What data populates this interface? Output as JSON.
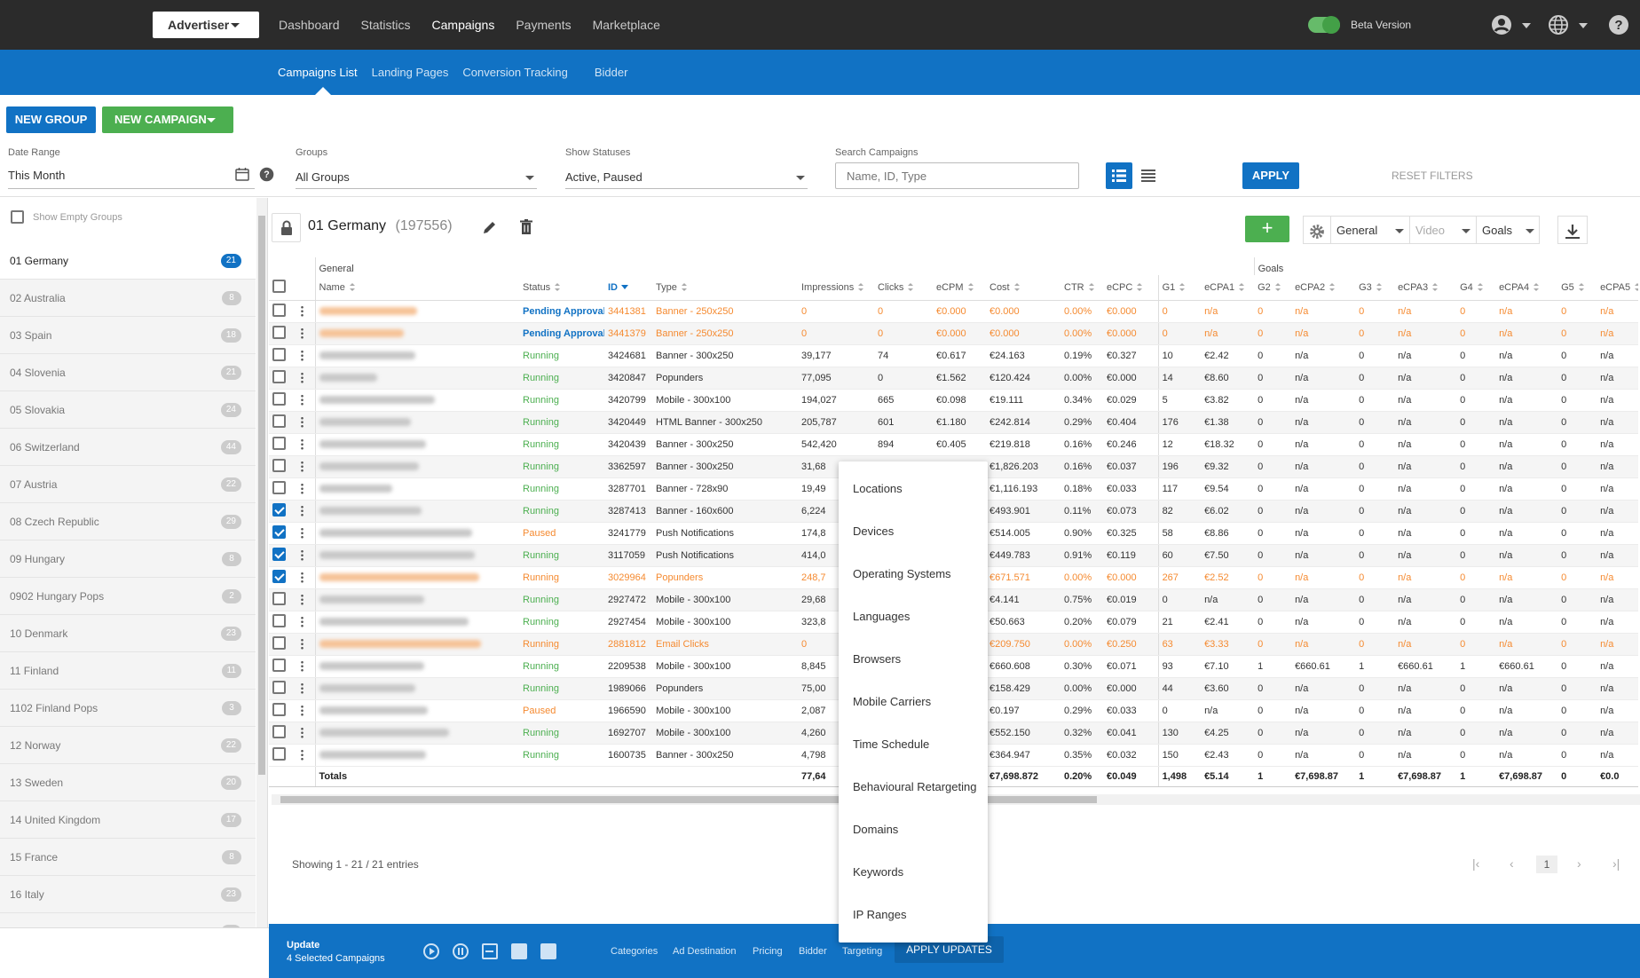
{
  "topbar": {
    "account_label": "Advertiser",
    "nav": [
      "Dashboard",
      "Statistics",
      "Campaigns",
      "Payments",
      "Marketplace"
    ],
    "active_nav": "Campaigns",
    "beta_label": "Beta Version"
  },
  "subnav": {
    "items": [
      "Campaigns List",
      "Landing Pages",
      "Conversion Tracking",
      "Bidder"
    ],
    "active": "Campaigns List"
  },
  "actions": {
    "new_group": "NEW GROUP",
    "new_campaign": "NEW CAMPAIGN"
  },
  "filters": {
    "date_range_label": "Date Range",
    "date_range_value": "This Month",
    "groups_label": "Groups",
    "groups_value": "All Groups",
    "statuses_label": "Show Statuses",
    "statuses_value": "Active, Paused",
    "search_label": "Search Campaigns",
    "search_placeholder": "Name, ID, Type",
    "apply": "APPLY",
    "reset": "RESET FILTERS"
  },
  "sidebar": {
    "show_empty": "Show Empty Groups",
    "groups": [
      {
        "name": "01 Germany",
        "count": "21",
        "active": true
      },
      {
        "name": "02 Australia",
        "count": "8"
      },
      {
        "name": "03 Spain",
        "count": "18"
      },
      {
        "name": "04 Slovenia",
        "count": "21"
      },
      {
        "name": "05 Slovakia",
        "count": "24"
      },
      {
        "name": "06 Switzerland",
        "count": "44"
      },
      {
        "name": "07 Austria",
        "count": "22"
      },
      {
        "name": "08 Czech Republic",
        "count": "29"
      },
      {
        "name": "09 Hungary",
        "count": "8"
      },
      {
        "name": "0902 Hungary Pops",
        "count": "2"
      },
      {
        "name": "10 Denmark",
        "count": "23"
      },
      {
        "name": "11 Finland",
        "count": "11"
      },
      {
        "name": "1102 Finland Pops",
        "count": "3"
      },
      {
        "name": "12 Norway",
        "count": "22"
      },
      {
        "name": "13 Sweden",
        "count": "20"
      },
      {
        "name": "14 United Kingdom",
        "count": "17"
      },
      {
        "name": "15 France",
        "count": "8"
      },
      {
        "name": "16 Italy",
        "count": "23"
      },
      {
        "name": "17 New Zealand",
        "count": "18"
      }
    ]
  },
  "group_header": {
    "title": "01 Germany",
    "id": "(197556)",
    "select_general": "General",
    "select_video": "Video",
    "select_goals": "Goals"
  },
  "table": {
    "group_headers": {
      "general": "General",
      "goals": "Goals"
    },
    "columns": [
      "Name",
      "Status",
      "ID",
      "Type",
      "Impressions",
      "Clicks",
      "eCPM",
      "Cost",
      "CTR",
      "eCPC",
      "G1",
      "eCPA1",
      "G2",
      "eCPA2",
      "G3",
      "eCPA3",
      "G4",
      "eCPA4",
      "G5",
      "eCPA5"
    ],
    "rows": [
      {
        "checked": false,
        "orange": true,
        "nw": 110,
        "status": "Pending Approval",
        "st": "pending",
        "id": "3441381",
        "type": "Banner - 250x250",
        "imp": "0",
        "clicks": "0",
        "ecpm": "€0.000",
        "cost": "€0.000",
        "ctr": "0.00%",
        "ecpc": "€0.000",
        "g1": "0",
        "ecpa1": "n/a",
        "g2": "0",
        "ecpa2": "n/a",
        "g3": "0",
        "ecpa3": "n/a",
        "g4": "0",
        "ecpa4": "n/a",
        "g5": "0",
        "ecpa5": "n/a"
      },
      {
        "checked": false,
        "orange": true,
        "nw": 95,
        "status": "Pending Approval",
        "st": "pending",
        "id": "3441379",
        "type": "Banner - 250x250",
        "imp": "0",
        "clicks": "0",
        "ecpm": "€0.000",
        "cost": "€0.000",
        "ctr": "0.00%",
        "ecpc": "€0.000",
        "g1": "0",
        "ecpa1": "n/a",
        "g2": "0",
        "ecpa2": "n/a",
        "g3": "0",
        "ecpa3": "n/a",
        "g4": "0",
        "ecpa4": "n/a",
        "g5": "0",
        "ecpa5": "n/a"
      },
      {
        "checked": false,
        "orange": false,
        "nw": 108,
        "status": "Running",
        "st": "running",
        "id": "3424681",
        "type": "Banner - 300x250",
        "imp": "39,177",
        "clicks": "74",
        "ecpm": "€0.617",
        "cost": "€24.163",
        "ctr": "0.19%",
        "ecpc": "€0.327",
        "g1": "10",
        "ecpa1": "€2.42",
        "g2": "0",
        "ecpa2": "n/a",
        "g3": "0",
        "ecpa3": "n/a",
        "g4": "0",
        "ecpa4": "n/a",
        "g5": "0",
        "ecpa5": "n/a"
      },
      {
        "checked": false,
        "orange": false,
        "nw": 65,
        "status": "Running",
        "st": "running",
        "id": "3420847",
        "type": "Popunders",
        "imp": "77,095",
        "clicks": "0",
        "ecpm": "€1.562",
        "cost": "€120.424",
        "ctr": "0.00%",
        "ecpc": "€0.000",
        "g1": "14",
        "ecpa1": "€8.60",
        "g2": "0",
        "ecpa2": "n/a",
        "g3": "0",
        "ecpa3": "n/a",
        "g4": "0",
        "ecpa4": "n/a",
        "g5": "0",
        "ecpa5": "n/a"
      },
      {
        "checked": false,
        "orange": false,
        "nw": 130,
        "status": "Running",
        "st": "running",
        "id": "3420799",
        "type": "Mobile - 300x100",
        "imp": "194,027",
        "clicks": "665",
        "ecpm": "€0.098",
        "cost": "€19.111",
        "ctr": "0.34%",
        "ecpc": "€0.029",
        "g1": "5",
        "ecpa1": "€3.82",
        "g2": "0",
        "ecpa2": "n/a",
        "g3": "0",
        "ecpa3": "n/a",
        "g4": "0",
        "ecpa4": "n/a",
        "g5": "0",
        "ecpa5": "n/a"
      },
      {
        "checked": false,
        "orange": false,
        "nw": 103,
        "status": "Running",
        "st": "running",
        "id": "3420449",
        "type": "HTML Banner - 300x250",
        "imp": "205,787",
        "clicks": "601",
        "ecpm": "€1.180",
        "cost": "€242.814",
        "ctr": "0.29%",
        "ecpc": "€0.404",
        "g1": "176",
        "ecpa1": "€1.38",
        "g2": "0",
        "ecpa2": "n/a",
        "g3": "0",
        "ecpa3": "n/a",
        "g4": "0",
        "ecpa4": "n/a",
        "g5": "0",
        "ecpa5": "n/a"
      },
      {
        "checked": false,
        "orange": false,
        "nw": 120,
        "status": "Running",
        "st": "running",
        "id": "3420439",
        "type": "Banner - 300x250",
        "imp": "542,420",
        "clicks": "894",
        "ecpm": "€0.405",
        "cost": "€219.818",
        "ctr": "0.16%",
        "ecpc": "€0.246",
        "g1": "12",
        "ecpa1": "€18.32",
        "g2": "0",
        "ecpa2": "n/a",
        "g3": "0",
        "ecpa3": "n/a",
        "g4": "0",
        "ecpa4": "n/a",
        "g5": "0",
        "ecpa5": "n/a"
      },
      {
        "checked": false,
        "orange": false,
        "nw": 112,
        "status": "Running",
        "st": "running",
        "id": "3362597",
        "type": "Banner - 300x250",
        "imp": "31,68",
        "clicks": "",
        "ecpm": "",
        "cost": "€1,826.203",
        "ctr": "0.16%",
        "ecpc": "€0.037",
        "g1": "196",
        "ecpa1": "€9.32",
        "g2": "0",
        "ecpa2": "n/a",
        "g3": "0",
        "ecpa3": "n/a",
        "g4": "0",
        "ecpa4": "n/a",
        "g5": "0",
        "ecpa5": "n/a"
      },
      {
        "checked": false,
        "orange": false,
        "nw": 82,
        "status": "Running",
        "st": "running",
        "id": "3287701",
        "type": "Banner - 728x90",
        "imp": "19,49",
        "clicks": "",
        "ecpm": "",
        "cost": "€1,116.193",
        "ctr": "0.18%",
        "ecpc": "€0.033",
        "g1": "117",
        "ecpa1": "€9.54",
        "g2": "0",
        "ecpa2": "n/a",
        "g3": "0",
        "ecpa3": "n/a",
        "g4": "0",
        "ecpa4": "n/a",
        "g5": "0",
        "ecpa5": "n/a"
      },
      {
        "checked": true,
        "orange": false,
        "nw": 115,
        "status": "Running",
        "st": "running",
        "id": "3287413",
        "type": "Banner - 160x600",
        "imp": "6,224",
        "clicks": "",
        "ecpm": "",
        "cost": "€493.901",
        "ctr": "0.11%",
        "ecpc": "€0.073",
        "g1": "82",
        "ecpa1": "€6.02",
        "g2": "0",
        "ecpa2": "n/a",
        "g3": "0",
        "ecpa3": "n/a",
        "g4": "0",
        "ecpa4": "n/a",
        "g5": "0",
        "ecpa5": "n/a"
      },
      {
        "checked": true,
        "orange": false,
        "nw": 172,
        "status": "Paused",
        "st": "paused",
        "id": "3241779",
        "type": "Push Notifications",
        "imp": "174,8",
        "clicks": "",
        "ecpm": "",
        "cost": "€514.005",
        "ctr": "0.90%",
        "ecpc": "€0.325",
        "g1": "58",
        "ecpa1": "€8.86",
        "g2": "0",
        "ecpa2": "n/a",
        "g3": "0",
        "ecpa3": "n/a",
        "g4": "0",
        "ecpa4": "n/a",
        "g5": "0",
        "ecpa5": "n/a"
      },
      {
        "checked": true,
        "orange": false,
        "nw": 175,
        "status": "Running",
        "st": "running",
        "id": "3117059",
        "type": "Push Notifications",
        "imp": "414,0",
        "clicks": "",
        "ecpm": "",
        "cost": "€449.783",
        "ctr": "0.91%",
        "ecpc": "€0.119",
        "g1": "60",
        "ecpa1": "€7.50",
        "g2": "0",
        "ecpa2": "n/a",
        "g3": "0",
        "ecpa3": "n/a",
        "g4": "0",
        "ecpa4": "n/a",
        "g5": "0",
        "ecpa5": "n/a"
      },
      {
        "checked": true,
        "orange": true,
        "nw": 180,
        "status": "Running",
        "st": "running",
        "id": "3029964",
        "type": "Popunders",
        "imp": "248,7",
        "clicks": "",
        "ecpm": "",
        "cost": "€671.571",
        "ctr": "0.00%",
        "ecpc": "€0.000",
        "g1": "267",
        "ecpa1": "€2.52",
        "g2": "0",
        "ecpa2": "n/a",
        "g3": "0",
        "ecpa3": "n/a",
        "g4": "0",
        "ecpa4": "n/a",
        "g5": "0",
        "ecpa5": "n/a"
      },
      {
        "checked": false,
        "orange": false,
        "nw": 118,
        "status": "Running",
        "st": "running",
        "id": "2927472",
        "type": "Mobile - 300x100",
        "imp": "29,68",
        "clicks": "",
        "ecpm": "",
        "cost": "€4.141",
        "ctr": "0.75%",
        "ecpc": "€0.019",
        "g1": "0",
        "ecpa1": "n/a",
        "g2": "0",
        "ecpa2": "n/a",
        "g3": "0",
        "ecpa3": "n/a",
        "g4": "0",
        "ecpa4": "n/a",
        "g5": "0",
        "ecpa5": "n/a"
      },
      {
        "checked": false,
        "orange": false,
        "nw": 168,
        "status": "Running",
        "st": "running",
        "id": "2927454",
        "type": "Mobile - 300x100",
        "imp": "323,8",
        "clicks": "",
        "ecpm": "",
        "cost": "€50.663",
        "ctr": "0.20%",
        "ecpc": "€0.079",
        "g1": "21",
        "ecpa1": "€2.41",
        "g2": "0",
        "ecpa2": "n/a",
        "g3": "0",
        "ecpa3": "n/a",
        "g4": "0",
        "ecpa4": "n/a",
        "g5": "0",
        "ecpa5": "n/a"
      },
      {
        "checked": false,
        "orange": true,
        "nw": 182,
        "status": "Running",
        "st": "running",
        "id": "2881812",
        "type": "Email Clicks",
        "imp": "0",
        "clicks": "",
        "ecpm": "",
        "cost": "€209.750",
        "ctr": "0.00%",
        "ecpc": "€0.250",
        "g1": "63",
        "ecpa1": "€3.33",
        "g2": "0",
        "ecpa2": "n/a",
        "g3": "0",
        "ecpa3": "n/a",
        "g4": "0",
        "ecpa4": "n/a",
        "g5": "0",
        "ecpa5": "n/a"
      },
      {
        "checked": false,
        "orange": false,
        "nw": 118,
        "status": "Running",
        "st": "running",
        "id": "2209538",
        "type": "Mobile - 300x100",
        "imp": "8,845",
        "clicks": "",
        "ecpm": "",
        "cost": "€660.608",
        "ctr": "0.30%",
        "ecpc": "€0.071",
        "g1": "93",
        "ecpa1": "€7.10",
        "g2": "1",
        "ecpa2": "€660.61",
        "g3": "1",
        "ecpa3": "€660.61",
        "g4": "1",
        "ecpa4": "€660.61",
        "g5": "0",
        "ecpa5": "n/a"
      },
      {
        "checked": false,
        "orange": false,
        "nw": 108,
        "status": "Running",
        "st": "running",
        "id": "1989066",
        "type": "Popunders",
        "imp": "75,00",
        "clicks": "",
        "ecpm": "",
        "cost": "€158.429",
        "ctr": "0.00%",
        "ecpc": "€0.000",
        "g1": "44",
        "ecpa1": "€3.60",
        "g2": "0",
        "ecpa2": "n/a",
        "g3": "0",
        "ecpa3": "n/a",
        "g4": "0",
        "ecpa4": "n/a",
        "g5": "0",
        "ecpa5": "n/a"
      },
      {
        "checked": false,
        "orange": false,
        "nw": 122,
        "status": "Paused",
        "st": "paused",
        "id": "1966590",
        "type": "Mobile - 300x100",
        "imp": "2,087",
        "clicks": "",
        "ecpm": "",
        "cost": "€0.197",
        "ctr": "0.29%",
        "ecpc": "€0.033",
        "g1": "0",
        "ecpa1": "n/a",
        "g2": "0",
        "ecpa2": "n/a",
        "g3": "0",
        "ecpa3": "n/a",
        "g4": "0",
        "ecpa4": "n/a",
        "g5": "0",
        "ecpa5": "n/a"
      },
      {
        "checked": false,
        "orange": false,
        "nw": 146,
        "status": "Running",
        "st": "running",
        "id": "1692707",
        "type": "Mobile - 300x100",
        "imp": "4,260",
        "clicks": "",
        "ecpm": "",
        "cost": "€552.150",
        "ctr": "0.32%",
        "ecpc": "€0.041",
        "g1": "130",
        "ecpa1": "€4.25",
        "g2": "0",
        "ecpa2": "n/a",
        "g3": "0",
        "ecpa3": "n/a",
        "g4": "0",
        "ecpa4": "n/a",
        "g5": "0",
        "ecpa5": "n/a"
      },
      {
        "checked": false,
        "orange": false,
        "nw": 120,
        "status": "Running",
        "st": "running",
        "id": "1600735",
        "type": "Banner - 300x250",
        "imp": "4,798",
        "clicks": "",
        "ecpm": "",
        "cost": "€364.947",
        "ctr": "0.35%",
        "ecpc": "€0.032",
        "g1": "150",
        "ecpa1": "€2.43",
        "g2": "0",
        "ecpa2": "n/a",
        "g3": "0",
        "ecpa3": "n/a",
        "g4": "0",
        "ecpa4": "n/a",
        "g5": "0",
        "ecpa5": "n/a"
      }
    ],
    "totals": {
      "label": "Totals",
      "imp": "77,64",
      "cost": "€7,698.872",
      "ctr": "0.20%",
      "ecpc": "€0.049",
      "g1": "1,498",
      "ecpa1": "€5.14",
      "g2": "1",
      "ecpa2": "€7,698.87",
      "g3": "1",
      "ecpa3": "€7,698.87",
      "g4": "1",
      "ecpa4": "€7,698.87",
      "g5": "0",
      "ecpa5": "€0.0"
    }
  },
  "pagination": {
    "showing": "Showing 1 - 21 / 21 entries",
    "current": "1"
  },
  "bottom_bar": {
    "update_label": "Update",
    "selected_label": "4  Selected Campaigns",
    "links": [
      "Categories",
      "Ad Destination",
      "Pricing",
      "Bidder",
      "Targeting"
    ],
    "apply_updates": "APPLY UPDATES"
  },
  "targeting_menu": [
    "Locations",
    "Devices",
    "Operating Systems",
    "Languages",
    "Browsers",
    "Mobile Carriers",
    "Time Schedule",
    "Behavioural Retargeting",
    "Domains",
    "Keywords",
    "IP Ranges"
  ]
}
